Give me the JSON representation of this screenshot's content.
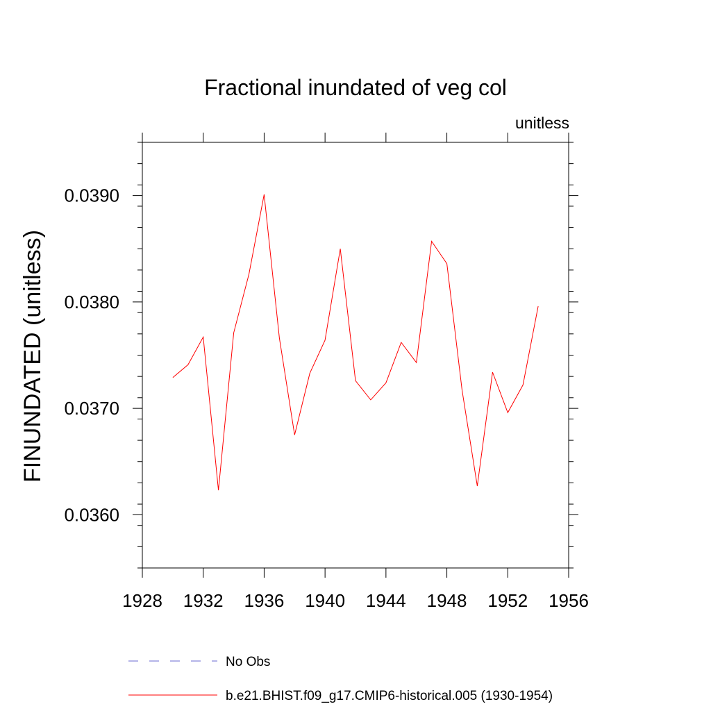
{
  "chart_data": {
    "type": "line",
    "title": "Fractional inundated of veg col",
    "units_label": "unitless",
    "ylabel": "FINUNDATED  (unitless)",
    "xlabel": "",
    "xlim": [
      1928,
      1956
    ],
    "ylim": [
      0.0355,
      0.0395
    ],
    "x_ticks": [
      1928,
      1932,
      1936,
      1940,
      1944,
      1948,
      1952,
      1956
    ],
    "x_tick_labels": [
      "1928",
      "1932",
      "1936",
      "1940",
      "1944",
      "1948",
      "1952",
      "1956"
    ],
    "y_ticks": [
      0.036,
      0.037,
      0.038,
      0.039
    ],
    "y_tick_labels": [
      "0.0360",
      "0.0370",
      "0.0380",
      "0.0390"
    ],
    "series": [
      {
        "name": "b.e21.BHIST.f09_g17.CMIP6-historical.005 (1930-1954)",
        "color": "#ff0000",
        "style": "solid",
        "x": [
          1930,
          1931,
          1932,
          1933,
          1934,
          1935,
          1936,
          1937,
          1938,
          1939,
          1940,
          1941,
          1942,
          1943,
          1944,
          1945,
          1946,
          1947,
          1948,
          1949,
          1950,
          1951,
          1952,
          1953,
          1954
        ],
        "values": [
          0.03729,
          0.03741,
          0.03767,
          0.03623,
          0.03771,
          0.03826,
          0.03901,
          0.03766,
          0.03675,
          0.03733,
          0.03764,
          0.0385,
          0.03726,
          0.03708,
          0.03724,
          0.03762,
          0.03743,
          0.03857,
          0.03836,
          0.03717,
          0.03627,
          0.03734,
          0.03696,
          0.03722,
          0.03796
        ]
      }
    ],
    "legend": [
      {
        "label": "No Obs",
        "color": "#6a6ad0",
        "style": "dashed"
      },
      {
        "label": "b.e21.BHIST.f09_g17.CMIP6-historical.005 (1930-1954)",
        "color": "#ff0000",
        "style": "solid"
      }
    ],
    "legend_position": "bottom-left",
    "grid": false
  }
}
